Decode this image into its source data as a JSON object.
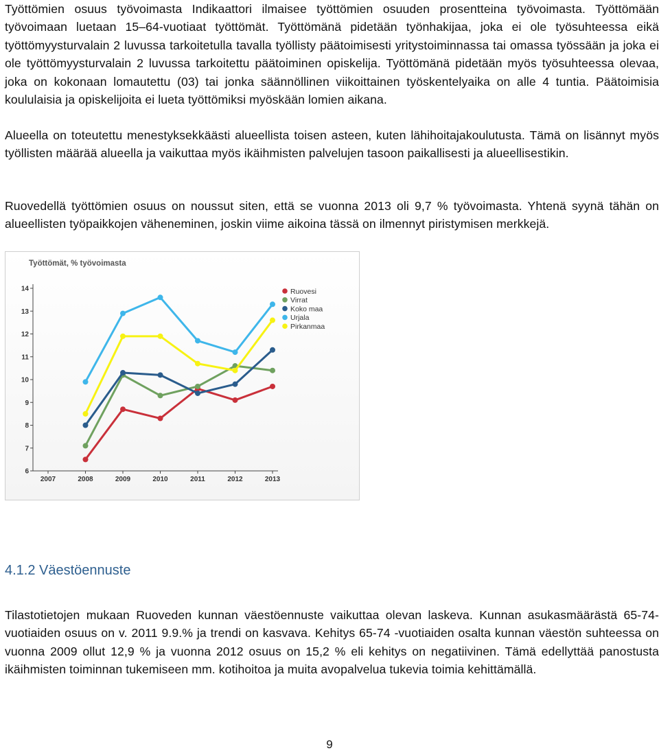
{
  "paragraphs": {
    "p1": "Työttömien osuus työvoimasta Indikaattori ilmaisee työttömien osuuden prosentteina työvoimasta. Työttömään työvoimaan luetaan 15–64-vuotiaat työttömät. Työttömänä pidetään työnhakijaa, joka ei ole työsuhteessa eikä työttömyysturvalain 2 luvussa tarkoitetulla tavalla työllisty päätoimisesti yritystoiminnassa tai omassa työssään ja joka ei ole työttömyysturvalain 2 luvussa tarkoitettu päätoiminen opiskelija. Työttömänä pidetään myös työsuhteessa olevaa, joka on kokonaan lomautettu (03) tai jonka säännöllinen viikoittainen työskentelyaika on alle 4 tuntia. Päätoimisia koululaisia ja opiskelijoita ei lueta työttömiksi myöskään lomien aikana.",
    "p2": "Alueella on toteutettu menestyksekkäästi alueellista toisen asteen, kuten lähihoitajakoulutusta. Tämä on lisännyt myös työllisten määrää alueella ja vaikuttaa myös ikäihmisten palvelujen tasoon paikallisesti ja alueellisestikin.",
    "p3": "Ruovedellä työttömien osuus on noussut siten, että se vuonna 2013 oli 9,7 % työvoimasta. Yhtenä syynä tähän on alueellisten työpaikkojen väheneminen, joskin viime aikoina tässä on ilmennyt piristymisen merkkejä.",
    "p4": "Tilastotietojen mukaan Ruoveden kunnan väestöennuste vaikuttaa olevan laskeva. Kunnan asukasmäärästä 65-74-vuotiaiden osuus on v. 2011 9.9.% ja trendi on kasvava. Kehitys 65-74 -vuotiaiden osalta kunnan väestön suhteessa on vuonna 2009 ollut 12,9 % ja vuonna 2012 osuus on 15,2 % eli kehitys on negatiivinen. Tämä edellyttää panostusta ikäihmisten toiminnan tukemiseen mm. kotihoitoa ja muita avopalvelua tukevia toimia kehittämällä."
  },
  "heading": "4.1.2 Väestöennuste",
  "page_number": "9",
  "chart_data": {
    "type": "line",
    "title": "Työttömät, % työvoimasta",
    "x": [
      "2007",
      "2008",
      "2009",
      "2010",
      "2011",
      "2012",
      "2013"
    ],
    "ylim": [
      6,
      14
    ],
    "yticks": [
      "6",
      "7",
      "8",
      "9",
      "10",
      "11",
      "12",
      "13",
      "14"
    ],
    "grid": false,
    "legend_position": "top-right",
    "series": [
      {
        "name": "Ruovesi",
        "color": "#c9303a",
        "values": [
          null,
          6.5,
          8.7,
          8.3,
          9.6,
          9.1,
          9.7
        ]
      },
      {
        "name": "Virrat",
        "color": "#6fa15f",
        "values": [
          null,
          7.1,
          10.2,
          9.3,
          9.7,
          10.6,
          10.4
        ]
      },
      {
        "name": "Koko maa",
        "color": "#2a5c8c",
        "values": [
          null,
          8.0,
          10.3,
          10.2,
          9.4,
          9.8,
          11.3
        ]
      },
      {
        "name": "Urjala",
        "color": "#3eb6ea",
        "values": [
          null,
          9.9,
          12.9,
          13.6,
          11.7,
          11.2,
          13.3
        ]
      },
      {
        "name": "Pirkanmaa",
        "color": "#f7f213",
        "values": [
          null,
          8.5,
          11.9,
          11.9,
          10.7,
          10.4,
          12.6
        ]
      }
    ]
  }
}
